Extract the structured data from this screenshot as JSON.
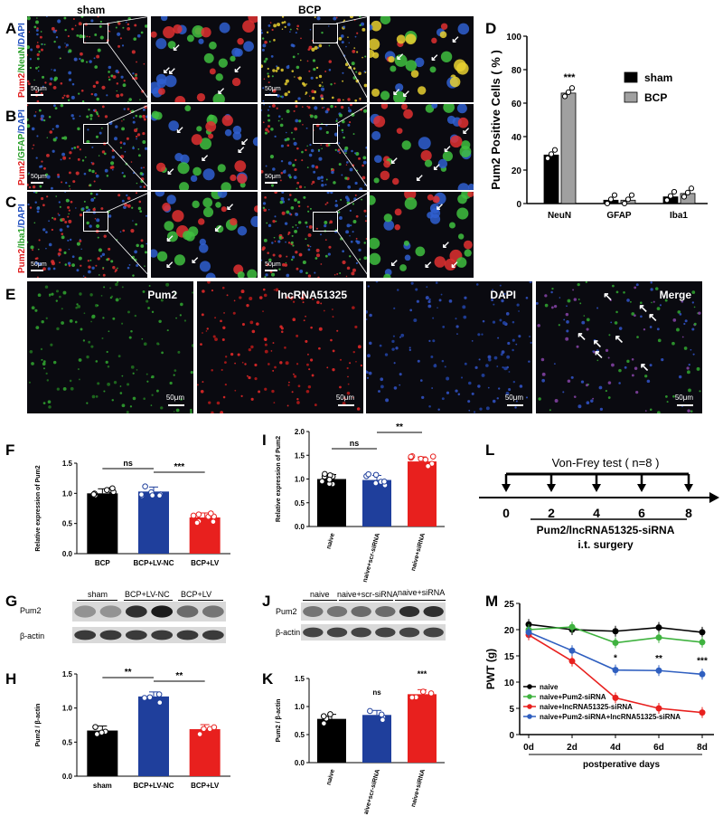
{
  "panel_letters": [
    "A",
    "B",
    "C",
    "D",
    "E",
    "F",
    "G",
    "H",
    "I",
    "J",
    "K",
    "L",
    "M"
  ],
  "micro_top": {
    "group_labels": [
      "sham",
      "BCP"
    ],
    "row_labels": [
      {
        "p1": "Pum2",
        "p2": "/NeuN",
        "p3": "/DAPI"
      },
      {
        "p1": "Pum2",
        "p2": "/GFAP",
        "p3": "/DAPI"
      },
      {
        "p1": "Pum2",
        "p2": "/Iba1",
        "p3": "/DAPI"
      }
    ],
    "scale_label": "50μm"
  },
  "micro_E": {
    "labels": [
      "Pum2",
      "lncRNA51325",
      "DAPI",
      "Merge"
    ],
    "scale_label": "50μm"
  },
  "colors": {
    "black": "#000000",
    "gray": "#a0a0a0",
    "blue": "#1f3f9c",
    "red": "#e8201e",
    "green": "#3fb23f",
    "mblue": "#2f5fc0"
  },
  "chart_data": [
    {
      "id": "D",
      "type": "bar",
      "ylabel": "Pum2 Positive Cells ( % )",
      "categories": [
        "NeuN",
        "GFAP",
        "Iba1"
      ],
      "series": [
        {
          "name": "sham",
          "values": [
            29,
            2,
            4
          ]
        },
        {
          "name": "BCP",
          "values": [
            66,
            2,
            6
          ]
        }
      ],
      "ylim": [
        0,
        100
      ],
      "yticks": [
        "0",
        "20",
        "40",
        "60",
        "80",
        "100"
      ],
      "annotations": [
        "***"
      ],
      "legend": "top-right"
    },
    {
      "id": "F",
      "type": "bar",
      "ylabel": "Relative expression of Pum2",
      "categories": [
        "BCP",
        "BCP+LV-NC",
        "BCP+LV"
      ],
      "values": [
        1.0,
        1.03,
        0.6
      ],
      "ylim": [
        0,
        1.5
      ],
      "yticks": [
        "0.0",
        "0.5",
        "1.0",
        "1.5"
      ],
      "annotations": [
        "ns",
        "***"
      ]
    },
    {
      "id": "I",
      "type": "bar",
      "ylabel": "Relative expression of Pum2",
      "categories": [
        "naive",
        "naive+scr-siRNA",
        "naive+siRNA"
      ],
      "values": [
        1.0,
        0.98,
        1.37
      ],
      "ylim": [
        0,
        2.0
      ],
      "yticks": [
        "0.0",
        "0.5",
        "1.0",
        "1.5",
        "2.0"
      ],
      "annotations": [
        "ns",
        "**"
      ]
    },
    {
      "id": "H",
      "type": "bar",
      "ylabel": "Pum2 / β-actin",
      "categories": [
        "sham",
        "BCP+LV-NC",
        "BCP+LV"
      ],
      "values": [
        0.67,
        1.17,
        0.69
      ],
      "ylim": [
        0,
        1.5
      ],
      "yticks": [
        "0.0",
        "0.5",
        "1.0",
        "1.5"
      ],
      "annotations": [
        "**",
        "**"
      ]
    },
    {
      "id": "K",
      "type": "bar",
      "ylabel": "Pum2 / β-actin",
      "categories": [
        "naive",
        "naive+scr-siRNA",
        "naive+siRNA"
      ],
      "values": [
        0.78,
        0.85,
        1.22
      ],
      "ylim": [
        0,
        1.5
      ],
      "yticks": [
        "0.0",
        "0.5",
        "1.0",
        "1.5"
      ],
      "annotations": [
        "ns",
        "***"
      ]
    },
    {
      "id": "M",
      "type": "line",
      "ylabel": "PWT (g)",
      "xlabel": "postperative days",
      "x": [
        "0d",
        "2d",
        "4d",
        "6d",
        "8d"
      ],
      "ylim": [
        0,
        25
      ],
      "yticks": [
        "0",
        "5",
        "10",
        "15",
        "20",
        "25"
      ],
      "series": [
        {
          "name": "naive",
          "values": [
            21,
            20,
            19.7,
            20.4,
            19.5
          ]
        },
        {
          "name": "naive+Pum2-siRNA",
          "values": [
            20,
            20.5,
            17.5,
            18.5,
            17.6
          ]
        },
        {
          "name": "naive+lncRNA51325-siRNA",
          "values": [
            19,
            14,
            7,
            5,
            4.2
          ]
        },
        {
          "name": "naive+Pum2-siRNA+lncRNA51325-siRNA",
          "values": [
            19.5,
            16,
            12.3,
            12.2,
            11.5
          ]
        }
      ],
      "annotations": [
        "*",
        "**",
        "***"
      ],
      "legend": "bottom-left"
    }
  ],
  "blot_G": {
    "groups": [
      "sham",
      "BCP+LV-NC",
      "BCP+LV"
    ],
    "rows": [
      "Pum2",
      "β-actin"
    ]
  },
  "blot_J": {
    "groups": [
      "naive",
      "naive+scr-siRNA",
      "naive+siRNA"
    ],
    "rows": [
      "Pum2",
      "β-actin"
    ]
  },
  "timeline_L": {
    "title": "Von-Frey test ( n=8 )",
    "ticks": [
      "0",
      "2",
      "4",
      "6",
      "8"
    ],
    "line1": "Pum2/lncRNA51325-siRNA",
    "line2": "i.t. surgery"
  }
}
